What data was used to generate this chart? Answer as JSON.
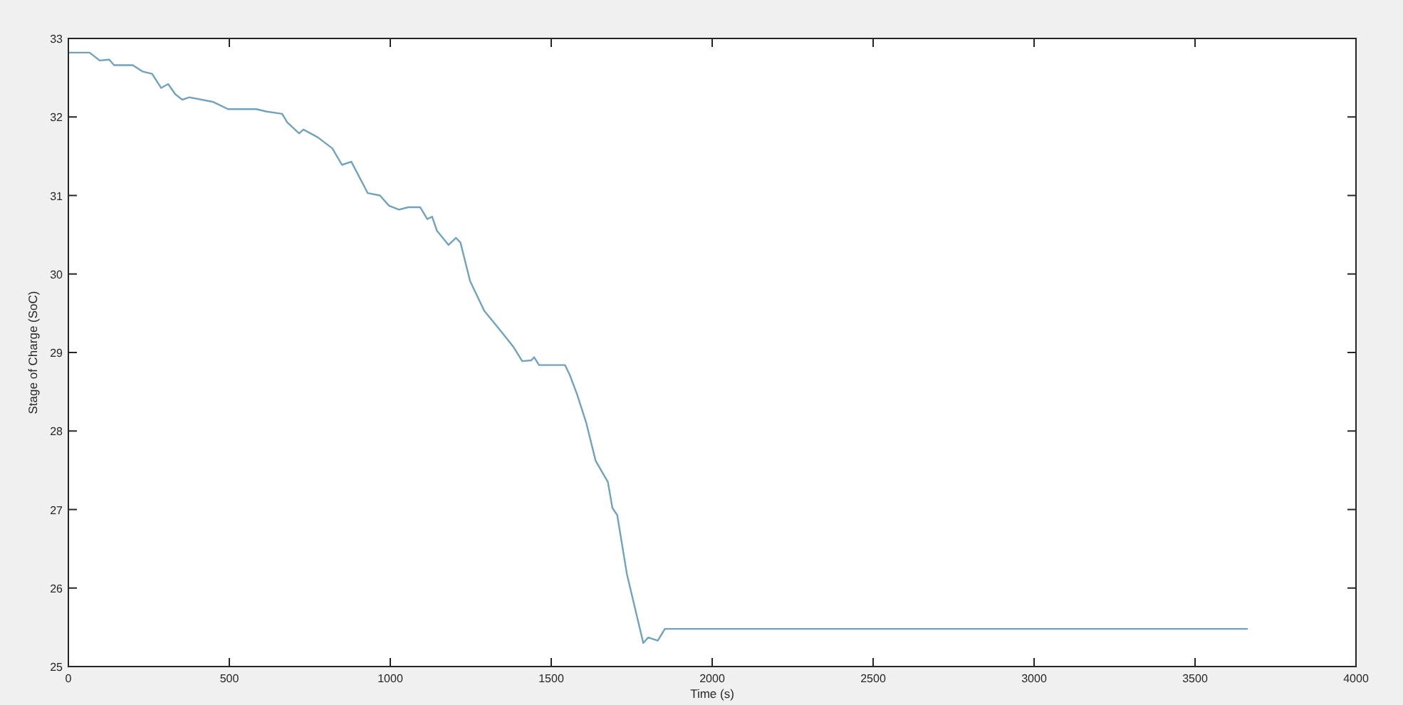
{
  "chart_data": {
    "type": "line",
    "xlabel": "Time (s)",
    "ylabel": "Stage of Charge (SoC)",
    "xlim": [
      0,
      4000
    ],
    "ylim": [
      25,
      33
    ],
    "xticks": [
      0,
      500,
      1000,
      1500,
      2000,
      2500,
      3000,
      3500,
      4000
    ],
    "yticks": [
      25,
      26,
      27,
      28,
      29,
      30,
      31,
      32,
      33
    ],
    "grid": false,
    "series": [
      {
        "color": "#6fa3bf",
        "x": [
          0,
          66,
          97,
          127,
          142,
          200,
          230,
          260,
          288,
          310,
          332,
          354,
          376,
          451,
          496,
          584,
          614,
          664,
          680,
          717,
          730,
          775,
          820,
          850,
          879,
          930,
          968,
          996,
          1027,
          1056,
          1093,
          1115,
          1130,
          1145,
          1181,
          1204,
          1218,
          1248,
          1292,
          1336,
          1381,
          1410,
          1438,
          1447,
          1462,
          1483,
          1543,
          1558,
          1580,
          1609,
          1638,
          1676,
          1690,
          1705,
          1735,
          1786,
          1801,
          1831,
          1853,
          2000,
          3664
        ],
        "values": [
          32.82,
          32.82,
          32.72,
          32.73,
          32.66,
          32.66,
          32.58,
          32.55,
          32.37,
          32.42,
          32.29,
          32.22,
          32.25,
          32.19,
          32.1,
          32.1,
          32.07,
          32.04,
          31.93,
          31.79,
          31.84,
          31.74,
          31.6,
          31.39,
          31.43,
          31.03,
          31.0,
          30.87,
          30.82,
          30.85,
          30.85,
          30.7,
          30.73,
          30.55,
          30.37,
          30.46,
          30.4,
          29.91,
          29.53,
          29.31,
          29.08,
          28.89,
          28.9,
          28.94,
          28.84,
          28.84,
          28.84,
          28.71,
          28.47,
          28.1,
          27.62,
          27.35,
          27.02,
          26.93,
          26.18,
          25.3,
          25.37,
          25.33,
          25.48,
          25.48,
          25.48
        ]
      }
    ]
  }
}
